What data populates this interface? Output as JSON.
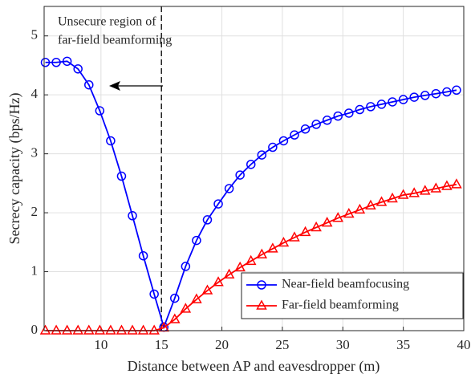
{
  "chart_data": {
    "type": "line",
    "x_label": "Distance between AP and eavesdropper (m)",
    "y_label": "Secrecy capacity (bps/Hz)",
    "annotation": "Unsecure region of far-field beamforming",
    "annotation_lines": [
      "Unsecure region of",
      "far-field beamforming"
    ],
    "vline": 15,
    "x": [
      5.4,
      6.3,
      7.2,
      8.1,
      9.0,
      9.9,
      10.8,
      11.7,
      12.6,
      13.5,
      14.4,
      15.2,
      16.1,
      17.0,
      17.9,
      18.8,
      19.7,
      20.6,
      21.5,
      22.4,
      23.3,
      24.2,
      25.1,
      26.0,
      26.9,
      27.8,
      28.7,
      29.6,
      30.5,
      31.4,
      32.3,
      33.2,
      34.1,
      35.0,
      35.9,
      36.8,
      37.7,
      38.6,
      39.4
    ],
    "series": [
      {
        "name": "Near-field beamfocusing",
        "color": "#0000ff",
        "marker": "circle",
        "values": [
          4.55,
          4.55,
          4.57,
          4.44,
          4.17,
          3.73,
          3.22,
          2.62,
          1.95,
          1.27,
          0.62,
          0.06,
          0.55,
          1.09,
          1.53,
          1.88,
          2.15,
          2.41,
          2.64,
          2.82,
          2.98,
          3.11,
          3.22,
          3.32,
          3.42,
          3.5,
          3.57,
          3.64,
          3.69,
          3.75,
          3.8,
          3.84,
          3.88,
          3.92,
          3.96,
          3.99,
          4.02,
          4.05,
          4.08
        ]
      },
      {
        "name": "Far-field beamforming",
        "color": "#ff0000",
        "marker": "triangle",
        "values": [
          0,
          0,
          0,
          0,
          0,
          0,
          0,
          0,
          0,
          0,
          0,
          0.05,
          0.19,
          0.37,
          0.53,
          0.68,
          0.82,
          0.95,
          1.07,
          1.18,
          1.29,
          1.39,
          1.49,
          1.58,
          1.67,
          1.75,
          1.83,
          1.91,
          1.98,
          2.05,
          2.12,
          2.18,
          2.24,
          2.3,
          2.33,
          2.37,
          2.41,
          2.45,
          2.48
        ]
      }
    ],
    "xlim": [
      5.3,
      40
    ],
    "ylim": [
      0,
      5.5
    ],
    "xticks": [
      10,
      15,
      20,
      25,
      30,
      35,
      40
    ],
    "yticks": [
      0,
      1,
      2,
      3,
      4,
      5
    ],
    "grid": true,
    "legend": "lower right"
  }
}
